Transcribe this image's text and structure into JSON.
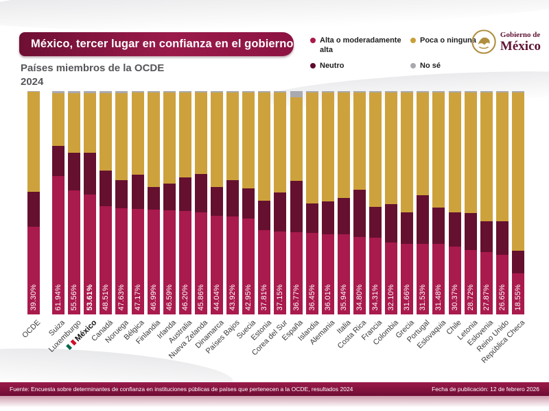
{
  "header": {
    "title": "México, tercer lugar en confianza en el gobierno",
    "subtitle": "Países miembros de la OCDE",
    "year": "2024"
  },
  "logo": {
    "top": "Gobierno de",
    "bottom": "México"
  },
  "legend": {
    "items": [
      {
        "key": "alta",
        "label": "Alta o moderadamente alta",
        "color": "#A91A4D"
      },
      {
        "key": "poca",
        "label": "Poca o ninguna",
        "color": "#C9A038"
      },
      {
        "key": "neutro",
        "label": "Neutro",
        "color": "#5E0B2C"
      },
      {
        "key": "nose",
        "label": "No sé",
        "color": "#A8AAB0"
      }
    ]
  },
  "chart_data": {
    "type": "bar",
    "stacked": true,
    "unit": "%",
    "ymax": 100,
    "grid": false,
    "series_names": [
      "Alta o moderadamente alta",
      "Neutro",
      "Poca o ninguna",
      "No sé"
    ],
    "note": "First bar OCDE is the OECD average, drawn separated from country bars; México is highlighted in bold with a flag.",
    "bars": [
      {
        "name": "OCDE",
        "alta": 39.3,
        "alta_label": "39.30%",
        "neutro": 15.6,
        "poca": 44.7,
        "nose": 0.4,
        "group": "average"
      },
      {
        "name": "Suiza",
        "alta": 61.94,
        "alta_label": "61.94%",
        "neutro": 13.4,
        "poca": 23.86,
        "nose": 0.8
      },
      {
        "name": "Luxemburgo",
        "alta": 55.56,
        "alta_label": "55.56%",
        "neutro": 16.9,
        "poca": 26.74,
        "nose": 0.8
      },
      {
        "name": "México",
        "alta": 53.61,
        "alta_label": "53.61%",
        "neutro": 18.9,
        "poca": 26.69,
        "nose": 0.8,
        "highlight": true,
        "flag": true
      },
      {
        "name": "Canadá",
        "alta": 48.51,
        "alta_label": "48.51%",
        "neutro": 15.8,
        "poca": 34.89,
        "nose": 0.8
      },
      {
        "name": "Noruega",
        "alta": 47.63,
        "alta_label": "47.63%",
        "neutro": 12.4,
        "poca": 39.17,
        "nose": 0.8
      },
      {
        "name": "Bélgica",
        "alta": 47.17,
        "alta_label": "47.17%",
        "neutro": 15.4,
        "poca": 36.83,
        "nose": 0.6
      },
      {
        "name": "Finlandia",
        "alta": 46.99,
        "alta_label": "46.99%",
        "neutro": 10.2,
        "poca": 42.21,
        "nose": 0.6
      },
      {
        "name": "Irlanda",
        "alta": 46.59,
        "alta_label": "46.59%",
        "neutro": 11.9,
        "poca": 40.91,
        "nose": 0.6
      },
      {
        "name": "Australia",
        "alta": 46.2,
        "alta_label": "46.20%",
        "neutro": 15.1,
        "poca": 38.1,
        "nose": 0.6
      },
      {
        "name": "Nueva Zelanda",
        "alta": 45.86,
        "alta_label": "45.86%",
        "neutro": 17.0,
        "poca": 36.54,
        "nose": 0.6
      },
      {
        "name": "Dinamarca",
        "alta": 44.04,
        "alta_label": "44.04%",
        "neutro": 13.1,
        "poca": 42.26,
        "nose": 0.6
      },
      {
        "name": "Países Bajos",
        "alta": 43.92,
        "alta_label": "43.92%",
        "neutro": 16.1,
        "poca": 39.38,
        "nose": 0.6
      },
      {
        "name": "Suecia",
        "alta": 42.95,
        "alta_label": "42.95%",
        "neutro": 13.5,
        "poca": 42.95,
        "nose": 0.6
      },
      {
        "name": "Estonia",
        "alta": 37.81,
        "alta_label": "37.81%",
        "neutro": 13.0,
        "poca": 48.59,
        "nose": 0.6
      },
      {
        "name": "Corea del Sur",
        "alta": 37.15,
        "alta_label": "37.15%",
        "neutro": 17.5,
        "poca": 44.75,
        "nose": 0.6
      },
      {
        "name": "España",
        "alta": 36.77,
        "alta_label": "36.77%",
        "neutro": 23.0,
        "poca": 37.43,
        "nose": 2.8
      },
      {
        "name": "Islandia",
        "alta": 36.45,
        "alta_label": "36.45%",
        "neutro": 13.3,
        "poca": 49.65,
        "nose": 0.6
      },
      {
        "name": "Alemania",
        "alta": 36.01,
        "alta_label": "36.01%",
        "neutro": 14.5,
        "poca": 48.89,
        "nose": 0.6
      },
      {
        "name": "Italia",
        "alta": 35.94,
        "alta_label": "35.94%",
        "neutro": 16.1,
        "poca": 47.36,
        "nose": 0.6
      },
      {
        "name": "Costa Rica",
        "alta": 34.8,
        "alta_label": "34.80%",
        "neutro": 21.1,
        "poca": 43.5,
        "nose": 0.6
      },
      {
        "name": "Francia",
        "alta": 34.31,
        "alta_label": "34.31%",
        "neutro": 13.9,
        "poca": 51.19,
        "nose": 0.6
      },
      {
        "name": "Colombia",
        "alta": 32.1,
        "alta_label": "32.10%",
        "neutro": 17.2,
        "poca": 50.1,
        "nose": 0.6
      },
      {
        "name": "Grecia",
        "alta": 31.66,
        "alta_label": "31.66%",
        "neutro": 14.0,
        "poca": 53.74,
        "nose": 0.6
      },
      {
        "name": "Portugal",
        "alta": 31.53,
        "alta_label": "31.53%",
        "neutro": 21.8,
        "poca": 46.07,
        "nose": 0.6
      },
      {
        "name": "Eslovaquia",
        "alta": 31.48,
        "alta_label": "31.48%",
        "neutro": 16.3,
        "poca": 51.62,
        "nose": 0.6
      },
      {
        "name": "Chile",
        "alta": 30.37,
        "alta_label": "30.37%",
        "neutro": 15.3,
        "poca": 53.73,
        "nose": 0.6
      },
      {
        "name": "Letonia",
        "alta": 28.72,
        "alta_label": "28.72%",
        "neutro": 16.7,
        "poca": 53.98,
        "nose": 0.6
      },
      {
        "name": "Eslovenia",
        "alta": 27.87,
        "alta_label": "27.87%",
        "neutro": 13.9,
        "poca": 57.63,
        "nose": 0.6
      },
      {
        "name": "Reino Unido",
        "alta": 26.65,
        "alta_label": "26.65%",
        "neutro": 15.2,
        "poca": 57.55,
        "nose": 0.6
      },
      {
        "name": "República Checa",
        "alta": 18.55,
        "alta_label": "18.55%",
        "neutro": 10.0,
        "poca": 70.85,
        "nose": 0.6
      }
    ]
  },
  "footer": {
    "source": "Fuente: Encuesta sobre determinantes de confianza en instituciones públicas de países que pertenecen a la OCDE, resultados 2024",
    "date": "Fecha de publicación: 12 de febrero 2026"
  },
  "colors": {
    "alta": "#A91A4D",
    "neutro": "#65102F",
    "poca": "#CDA23D",
    "nose": "#A8AAB0",
    "banner": "#8C1342",
    "footer_bar": "#6E0C33",
    "flag_green": "#006847",
    "flag_red": "#CE1126"
  }
}
